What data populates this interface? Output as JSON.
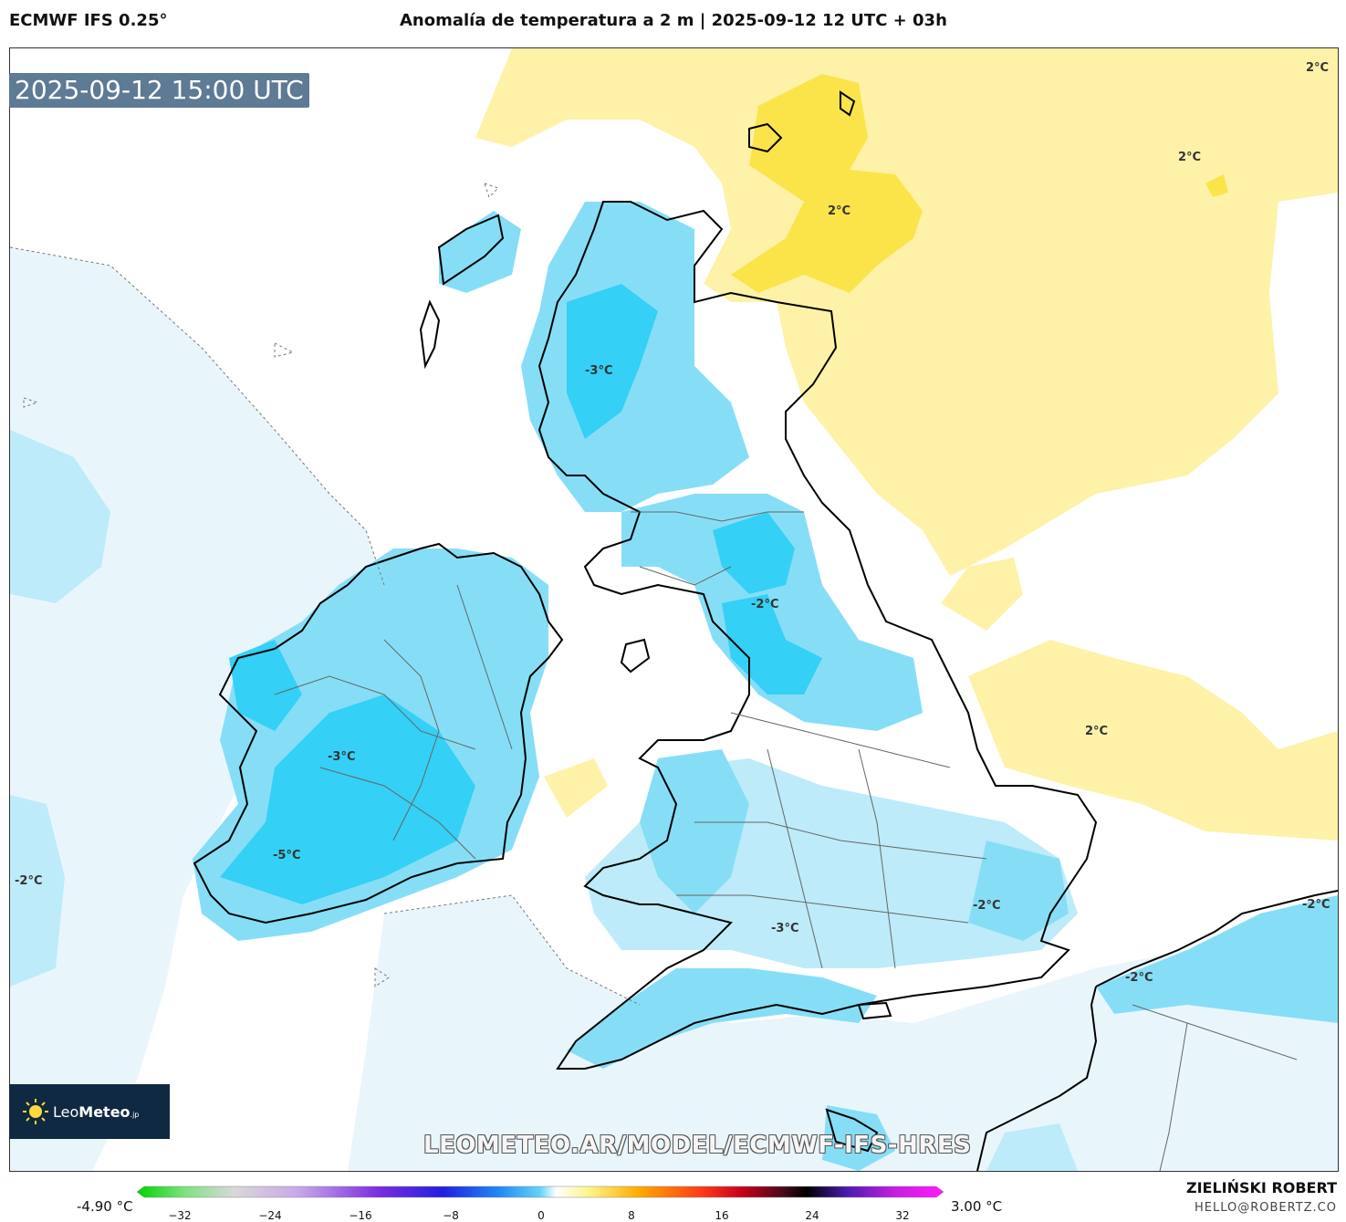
{
  "header": {
    "model": "ECMWF IFS 0.25°",
    "title": "Anomalía de temperatura a 2 m | 2025-09-12 12 UTC + 03h"
  },
  "map": {
    "valid_time": "2025-09-12 15:00 UTC",
    "contour_labels": [
      "2°C",
      "2°C",
      "2°C",
      "2°C",
      "-3°C",
      "-2°C",
      "-3°C",
      "-5°C",
      "-2°C",
      "-2°C",
      "-3°C",
      "-2°C",
      "-2°C"
    ],
    "watermark": "LEOMETEO.AR/MODEL/ECMWF-IFS-HRES",
    "logo": {
      "name": "Leo",
      "bold": "Meteo",
      "suffix": ".jp"
    },
    "colors": {
      "warm_light": "#fdf2a8",
      "warm_strong": "#fbe44a",
      "cold_faint": "#e8f6fc",
      "cold_light": "#bdebf9",
      "cold_mid": "#86def6",
      "cold_strong": "#34d0f5"
    }
  },
  "colorbar": {
    "min_label": "-4.90 °C",
    "max_label": "3.00 °C",
    "ticks": [
      "−32",
      "−24",
      "−16",
      "−8",
      "0",
      "8",
      "16",
      "24",
      "32"
    ],
    "range": [
      -36,
      36
    ]
  },
  "footer": {
    "author": "ZIELIŃSKI ROBERT",
    "email": "HELLO@ROBERTZ.CO"
  }
}
